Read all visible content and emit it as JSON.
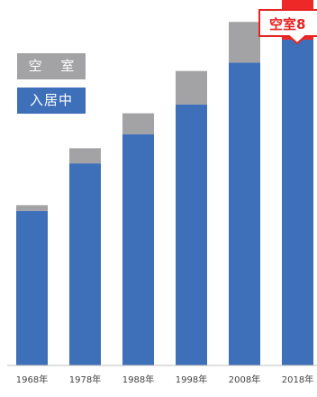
{
  "chart_data": {
    "type": "bar",
    "stacked": true,
    "title": "",
    "xlabel": "",
    "ylabel": "",
    "ylim": [
      0,
      7000
    ],
    "grid": false,
    "legend_position": "top-left",
    "categories": [
      "1968年",
      "1978年",
      "1988年",
      "1998年",
      "2008年",
      "2018年"
    ],
    "series": [
      {
        "name": "入居中",
        "color": "#3e6fb9",
        "values": [
          2960,
          3870,
          4430,
          5000,
          5800,
          6240
        ]
      },
      {
        "name": "空 室",
        "color": "#a3a3a5",
        "values": [
          110,
          290,
          400,
          640,
          780,
          0
        ]
      }
    ],
    "highlight": {
      "category": "2018年",
      "vacant_value": 880,
      "color": "#ee2727"
    },
    "annotation": {
      "text": "空室8",
      "color": "#e52421"
    },
    "axis_color": "#bfbfbf"
  },
  "legend": {
    "vacant_label": "空 室",
    "occupied_label": "入居中"
  }
}
